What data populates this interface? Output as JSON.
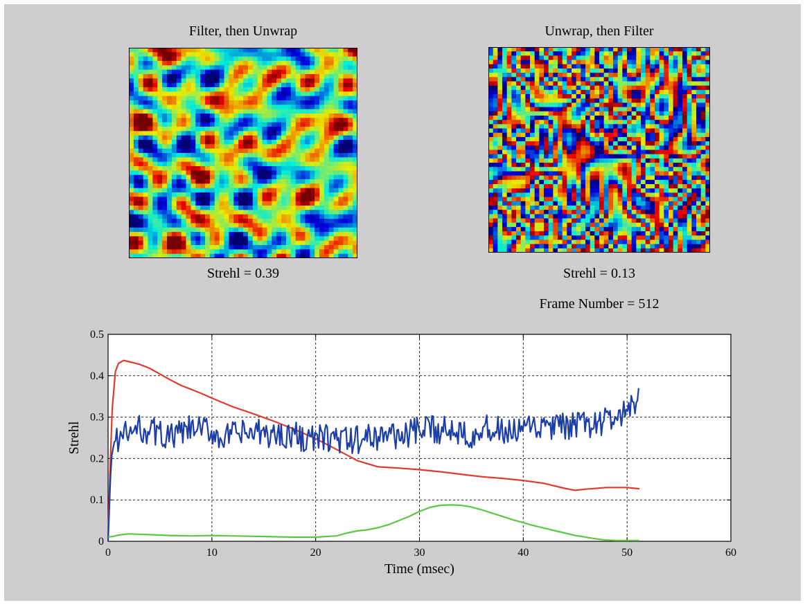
{
  "panels": {
    "left": {
      "title": "Filter, then Unwrap",
      "strehl_label": "Strehl = 0.39"
    },
    "right": {
      "title": "Unwrap, then Filter",
      "strehl_label": "Strehl = 0.13"
    },
    "frame_label": "Frame Number = 512"
  },
  "colors": {
    "figure_bg": "#cfcdd0",
    "red_series": "#e03a2c",
    "blue_series": "#1c3ea8",
    "green_series": "#5cc447"
  },
  "chart_data": [
    {
      "type": "heatmap",
      "title": "Filter, then Unwrap",
      "annotation": "Strehl = 0.39",
      "colormap": "jet",
      "grid_size": 48,
      "pattern": "smooth"
    },
    {
      "type": "heatmap",
      "title": "Unwrap, then Filter",
      "annotation": "Strehl = 0.13",
      "colormap": "jet",
      "grid_size": 48,
      "pattern": "wrapped"
    },
    {
      "type": "line",
      "title": "",
      "xlabel": "Time (msec)",
      "ylabel": "Strehl",
      "xlim": [
        0,
        60
      ],
      "ylim": [
        0,
        0.5
      ],
      "xticks": [
        0,
        10,
        20,
        30,
        40,
        50,
        60
      ],
      "yticks": [
        0,
        0.1,
        0.2,
        0.3,
        0.4,
        0.5
      ],
      "xtick_labels": [
        "0",
        "10",
        "20",
        "30",
        "40",
        "50",
        "60"
      ],
      "ytick_labels": [
        "0",
        "0.1",
        "0.2",
        "0.3",
        "0.4",
        "0.5"
      ],
      "grid": true,
      "series": [
        {
          "color": "#e03a2c",
          "x": [
            0,
            0.2,
            0.4,
            0.7,
            1.0,
            1.5,
            2,
            3,
            4,
            5,
            6,
            7,
            8,
            9,
            10,
            12,
            14,
            16,
            18,
            20,
            22,
            24,
            26,
            28,
            30,
            32,
            34,
            36,
            38,
            40,
            42,
            44,
            45,
            46,
            48,
            50,
            51.2
          ],
          "y": [
            0.01,
            0.18,
            0.32,
            0.41,
            0.43,
            0.437,
            0.434,
            0.428,
            0.418,
            0.404,
            0.39,
            0.377,
            0.367,
            0.357,
            0.346,
            0.325,
            0.308,
            0.29,
            0.27,
            0.248,
            0.222,
            0.195,
            0.18,
            0.177,
            0.173,
            0.168,
            0.162,
            0.156,
            0.152,
            0.147,
            0.14,
            0.128,
            0.123,
            0.126,
            0.13,
            0.13,
            0.127
          ]
        },
        {
          "color": "#1c3ea8",
          "x": [
            0,
            0.3,
            0.6,
            1,
            2,
            3,
            4,
            5,
            6,
            7,
            8,
            9,
            10,
            11,
            12,
            13,
            14,
            15,
            16,
            17,
            18,
            19,
            20,
            21,
            22,
            23,
            24,
            25,
            26,
            27,
            28,
            29,
            30,
            31,
            32,
            33,
            34,
            35,
            36,
            37,
            38,
            39,
            40,
            41,
            42,
            43,
            44,
            45,
            46,
            47,
            48,
            49,
            50,
            50.5,
            51,
            51.2
          ],
          "y": [
            0.0,
            0.2,
            0.24,
            0.25,
            0.26,
            0.27,
            0.27,
            0.26,
            0.25,
            0.26,
            0.27,
            0.27,
            0.265,
            0.25,
            0.255,
            0.26,
            0.26,
            0.26,
            0.255,
            0.26,
            0.255,
            0.25,
            0.245,
            0.25,
            0.25,
            0.24,
            0.245,
            0.25,
            0.255,
            0.26,
            0.255,
            0.26,
            0.265,
            0.27,
            0.27,
            0.27,
            0.27,
            0.26,
            0.27,
            0.27,
            0.265,
            0.26,
            0.27,
            0.27,
            0.275,
            0.275,
            0.275,
            0.28,
            0.28,
            0.285,
            0.29,
            0.3,
            0.31,
            0.32,
            0.34,
            0.39
          ],
          "jitter": 0.035
        },
        {
          "color": "#5cc447",
          "x": [
            0,
            0.5,
            1,
            2,
            3,
            4,
            6,
            8,
            10,
            12,
            14,
            16,
            18,
            20,
            22,
            23,
            24,
            25,
            26,
            27,
            28,
            29,
            30,
            31,
            32,
            33,
            34,
            35,
            36,
            37,
            38,
            39,
            40,
            41,
            42,
            43,
            44,
            45,
            46,
            47,
            48,
            49,
            50,
            51.2
          ],
          "y": [
            0.01,
            0.012,
            0.015,
            0.018,
            0.017,
            0.016,
            0.014,
            0.013,
            0.014,
            0.013,
            0.012,
            0.011,
            0.01,
            0.01,
            0.013,
            0.02,
            0.025,
            0.028,
            0.033,
            0.04,
            0.05,
            0.06,
            0.072,
            0.082,
            0.087,
            0.088,
            0.087,
            0.083,
            0.076,
            0.068,
            0.06,
            0.052,
            0.045,
            0.038,
            0.032,
            0.026,
            0.02,
            0.014,
            0.01,
            0.006,
            0.003,
            0.002,
            0.002,
            0.002
          ]
        }
      ]
    }
  ]
}
